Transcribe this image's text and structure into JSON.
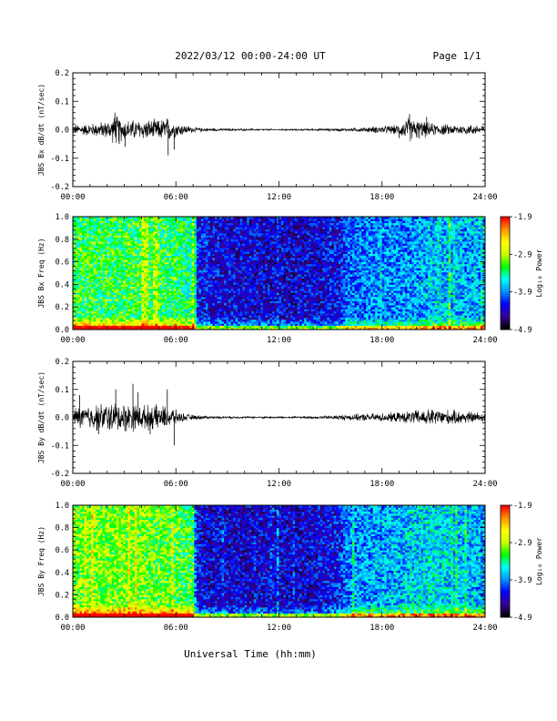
{
  "header": {
    "title": "2022/03/12  00:00-24:00 UT",
    "page": "Page 1/1"
  },
  "footer": {
    "xlabel": "Universal Time (hh:mm)"
  },
  "colors": {
    "trace": "#000000",
    "colormap": [
      "#000000",
      "#3a0096",
      "#0000ff",
      "#0096ff",
      "#00ffff",
      "#00ff00",
      "#c8ff00",
      "#ffff00",
      "#ff9600",
      "#ff0000"
    ]
  },
  "chart_data": [
    {
      "type": "line",
      "ylabel": "JBS Bx dB/dt (nT/sec)",
      "xlabel": "",
      "xlim": [
        0,
        24
      ],
      "ylim": [
        -0.2,
        0.2
      ],
      "xticks": [
        "00:00",
        "06:00",
        "12:00",
        "18:00",
        "24:00"
      ],
      "yticks": [
        "-0.2",
        "-0.1",
        "0.0",
        "0.1",
        "0.2"
      ],
      "series": [
        {
          "x": [
            0,
            1,
            2,
            2.5,
            3,
            4,
            5,
            5.5,
            6,
            7,
            8,
            10,
            12,
            14,
            16,
            17,
            18,
            19,
            19.5,
            20,
            21,
            22,
            23,
            24
          ],
          "envelope": [
            0.02,
            0.025,
            0.035,
            0.06,
            0.04,
            0.04,
            0.04,
            0.05,
            0.03,
            0.01,
            0.006,
            0.004,
            0.003,
            0.004,
            0.006,
            0.01,
            0.015,
            0.02,
            0.05,
            0.04,
            0.025,
            0.02,
            0.02,
            0.02
          ],
          "spikes": [
            [
              2.45,
              0.06
            ],
            [
              3.05,
              -0.06
            ],
            [
              5.55,
              -0.09
            ],
            [
              5.9,
              -0.07
            ],
            [
              2.7,
              -0.05
            ],
            [
              19.6,
              0.055
            ],
            [
              20.6,
              0.045
            ],
            [
              19.0,
              -0.03
            ]
          ]
        }
      ]
    },
    {
      "type": "heatmap",
      "ylabel": "JBS Bx Freq (Hz)",
      "xlim": [
        0,
        24
      ],
      "ylim": [
        0.0,
        1.0
      ],
      "xticks": [
        "00:00",
        "06:00",
        "12:00",
        "18:00",
        "24:00"
      ],
      "yticks": [
        "0.0",
        "0.2",
        "0.4",
        "0.6",
        "0.8",
        "1.0"
      ],
      "colorbar": {
        "label": "Log₁₀ Power",
        "min": -4.9,
        "max": -1.9,
        "ticks": [
          "-1.9",
          "-2.9",
          "-3.9",
          "-4.9"
        ]
      },
      "activity": {
        "t": [
          0,
          1,
          2,
          3,
          4,
          5,
          6,
          7,
          7.2,
          8,
          10,
          12,
          14,
          15.5,
          16,
          17,
          18,
          19,
          20,
          21,
          22,
          23,
          24
        ],
        "level": [
          0.55,
          0.55,
          0.55,
          0.55,
          0.55,
          0.55,
          0.52,
          0.5,
          0.22,
          0.2,
          0.18,
          0.17,
          0.18,
          0.2,
          0.3,
          0.32,
          0.32,
          0.33,
          0.35,
          0.38,
          0.38,
          0.36,
          0.35
        ]
      }
    },
    {
      "type": "line",
      "ylabel": "JBS By dB/dt (nT/sec)",
      "xlabel": "",
      "xlim": [
        0,
        24
      ],
      "ylim": [
        -0.2,
        0.2
      ],
      "xticks": [
        "00:00",
        "06:00",
        "12:00",
        "18:00",
        "24:00"
      ],
      "yticks": [
        "-0.2",
        "-0.1",
        "0.0",
        "0.1",
        "0.2"
      ],
      "series": [
        {
          "x": [
            0,
            1,
            2,
            3,
            4,
            5,
            5.8,
            6.2,
            7,
            8,
            10,
            12,
            14,
            15,
            16,
            17,
            18,
            19,
            20,
            21,
            22,
            23,
            24
          ],
          "envelope": [
            0.04,
            0.05,
            0.06,
            0.06,
            0.05,
            0.05,
            0.04,
            0.02,
            0.01,
            0.005,
            0.004,
            0.004,
            0.005,
            0.008,
            0.012,
            0.015,
            0.018,
            0.02,
            0.03,
            0.035,
            0.03,
            0.025,
            0.02
          ],
          "spikes": [
            [
              3.5,
              0.12
            ],
            [
              2.5,
              0.1
            ],
            [
              0.4,
              0.08
            ],
            [
              5.9,
              -0.1
            ],
            [
              1.5,
              -0.06
            ],
            [
              4.5,
              -0.06
            ],
            [
              3.8,
              0.09
            ],
            [
              5.5,
              0.1
            ]
          ]
        }
      ]
    },
    {
      "type": "heatmap",
      "ylabel": "JBS By Freq (Hz)",
      "xlim": [
        0,
        24
      ],
      "ylim": [
        0.0,
        1.0
      ],
      "xticks": [
        "00:00",
        "06:00",
        "12:00",
        "18:00",
        "24:00"
      ],
      "yticks": [
        "0.0",
        "0.2",
        "0.4",
        "0.6",
        "0.8",
        "1.0"
      ],
      "colorbar": {
        "label": "Log₁₀ Power",
        "min": -4.9,
        "max": -1.9,
        "ticks": [
          "-1.9",
          "-2.9",
          "-3.9",
          "-4.9"
        ]
      },
      "activity": {
        "t": [
          0,
          1,
          2,
          3,
          4,
          5,
          6,
          7,
          7.2,
          8,
          10,
          12,
          14,
          15.5,
          16,
          17,
          18,
          19,
          20,
          21,
          22,
          23,
          24
        ],
        "level": [
          0.62,
          0.62,
          0.62,
          0.62,
          0.6,
          0.6,
          0.58,
          0.55,
          0.2,
          0.18,
          0.17,
          0.17,
          0.18,
          0.22,
          0.32,
          0.35,
          0.36,
          0.37,
          0.4,
          0.42,
          0.4,
          0.38,
          0.36
        ]
      }
    }
  ]
}
